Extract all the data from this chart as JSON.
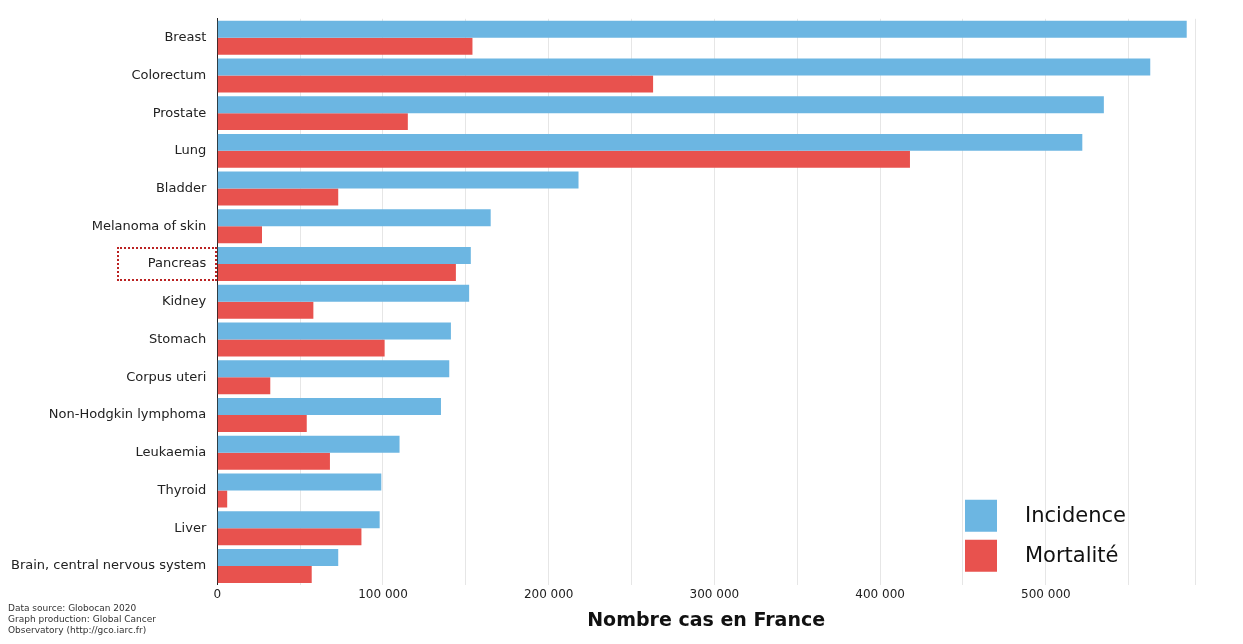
{
  "chart_data": {
    "type": "bar",
    "orientation": "horizontal",
    "xlabel": "Nombre cas en France",
    "categories": [
      "Breast",
      "Colorectum",
      "Prostate",
      "Lung",
      "Bladder",
      "Melanoma of skin",
      "Pancreas",
      "Kidney",
      "Stomach",
      "Corpus uteri",
      "Non-Hodgkin lymphoma",
      "Leukaemia",
      "Thyroid",
      "Liver",
      "Brain, central nervous system"
    ],
    "series": [
      {
        "name": "Incidence",
        "color": "#6cb6e2",
        "values": [
          585000,
          563000,
          535000,
          522000,
          218000,
          165000,
          153000,
          152000,
          141000,
          140000,
          135000,
          110000,
          99000,
          98000,
          73000
        ]
      },
      {
        "name": "Mortalité",
        "color": "#e8524e",
        "values": [
          154000,
          263000,
          115000,
          418000,
          73000,
          27000,
          144000,
          58000,
          101000,
          32000,
          54000,
          68000,
          6000,
          87000,
          57000
        ]
      }
    ],
    "xlim": [
      0,
      590000
    ],
    "xticks": [
      {
        "value": 0,
        "label": "0"
      },
      {
        "value": 50000,
        "label": null
      },
      {
        "value": 100000,
        "label": "100 000"
      },
      {
        "value": 150000,
        "label": null
      },
      {
        "value": 200000,
        "label": "200 000"
      },
      {
        "value": 250000,
        "label": null
      },
      {
        "value": 300000,
        "label": "300 000"
      },
      {
        "value": 350000,
        "label": null
      },
      {
        "value": 400000,
        "label": "400 000"
      },
      {
        "value": 450000,
        "label": null
      },
      {
        "value": 500000,
        "label": "500 000"
      },
      {
        "value": 550000,
        "label": null
      },
      {
        "value": 590000,
        "label": null
      }
    ],
    "grid": "x",
    "legend": "bottom right",
    "annotations": [
      "Data source: Globocan 2020\nGraph production: Global Cancer\nObservatory (http://gco.iarc.fr)"
    ]
  }
}
